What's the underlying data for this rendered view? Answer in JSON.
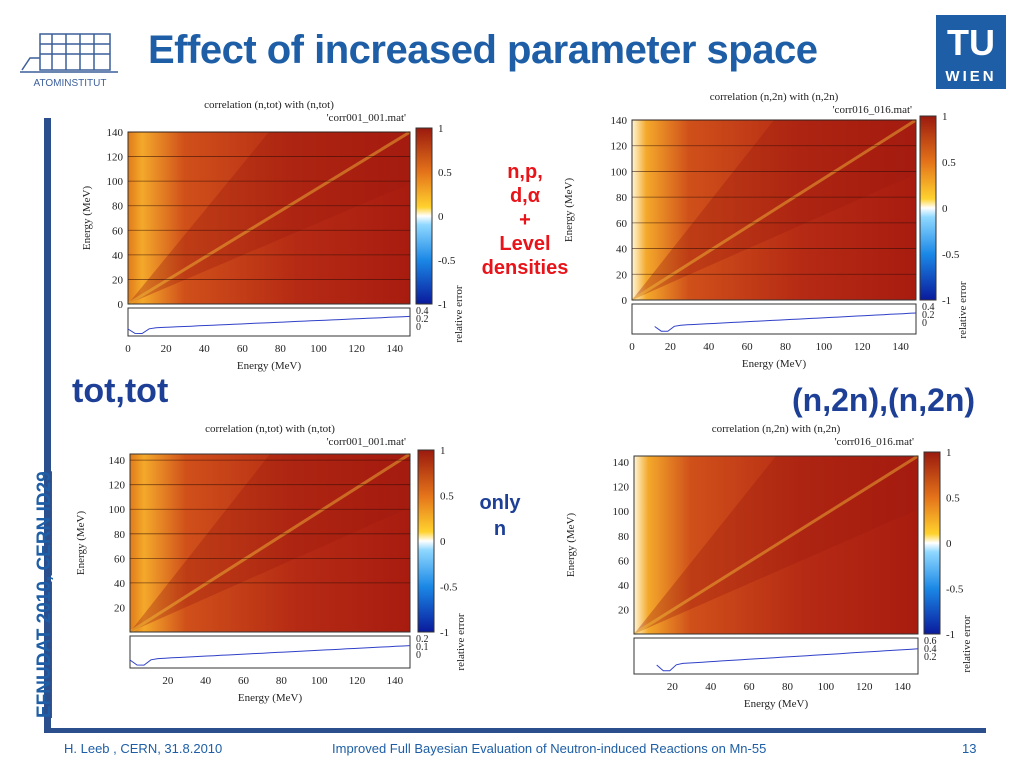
{
  "slide": {
    "title": "Effect of increased parameter space",
    "side_text": "EFNUDAT 2010, CERN    ID29",
    "footer_left": "H. Leeb , CERN, 31.8.2010",
    "footer_center": "Improved Full Bayesian Evaluation of Neutron-induced Reactions on Mn-55",
    "page_number": "13",
    "colors": {
      "title": "#1d5ea6",
      "bar": "#2b4f8c",
      "red_note": "#e8141a",
      "blue_label": "#1d3f96"
    }
  },
  "logos": {
    "left_text": "ATOMINSTITUT",
    "right_line1": "TU",
    "right_line2": "WIEN"
  },
  "labels": {
    "tot_tot": "tot,tot",
    "n2n_n2n": "(n,2n),(n,2n)",
    "note_params": [
      "n,p,",
      "d,α",
      "+",
      "Level",
      "densities"
    ],
    "note_only": [
      "only",
      "n"
    ]
  },
  "plots": [
    {
      "id": "tl",
      "title": "correlation (n,tot) with (n,tot)",
      "file": "'corr001_001.mat'",
      "ylabel": "Energy (MeV)",
      "xlabel": "Energy (MeV)",
      "yticks": [
        "0",
        "20",
        "40",
        "60",
        "80",
        "100",
        "120",
        "140"
      ],
      "xticks": [
        "0",
        "20",
        "40",
        "60",
        "80",
        "100",
        "120",
        "140"
      ],
      "cbar_ticks": [
        "1",
        "0.5",
        "0",
        "-0.5",
        "-1"
      ],
      "rel_ticks": [
        "0.4",
        "0.2",
        "0"
      ],
      "rel_label": "relative error",
      "x_start": 0
    },
    {
      "id": "tr",
      "title": "correlation (n,2n) with (n,2n)",
      "file": "'corr016_016.mat'",
      "ylabel": "Energy (MeV)",
      "xlabel": "Energy (MeV)",
      "yticks": [
        "0",
        "20",
        "40",
        "60",
        "80",
        "100",
        "120",
        "140"
      ],
      "xticks": [
        "0",
        "20",
        "40",
        "60",
        "80",
        "100",
        "120",
        "140"
      ],
      "cbar_ticks": [
        "1",
        "0.5",
        "0",
        "-0.5",
        "-1"
      ],
      "rel_ticks": [
        "0.4",
        "0.2",
        "0"
      ],
      "rel_label": "relative error",
      "x_start": 10
    },
    {
      "id": "bl",
      "title": "correlation (n,tot) with (n,tot)",
      "file": "'corr001_001.mat'",
      "ylabel": "Energy (MeV)",
      "xlabel": "Energy (MeV)",
      "yticks": [
        "20",
        "40",
        "60",
        "80",
        "100",
        "120",
        "140"
      ],
      "xticks": [
        "20",
        "40",
        "60",
        "80",
        "100",
        "120",
        "140"
      ],
      "cbar_ticks": [
        "1",
        "0.5",
        "0",
        "-0.5",
        "-1"
      ],
      "rel_ticks": [
        "0.2",
        "0.1",
        "0"
      ],
      "rel_label": "relative error",
      "x_start": 0
    },
    {
      "id": "br",
      "title": "correlation (n,2n) with (n,2n)",
      "file": "'corr016_016.mat'",
      "ylabel": "Energy (MeV)",
      "xlabel": "Energy (MeV)",
      "yticks": [
        "20",
        "40",
        "60",
        "80",
        "100",
        "120",
        "140"
      ],
      "xticks": [
        "20",
        "40",
        "60",
        "80",
        "100",
        "120",
        "140"
      ],
      "cbar_ticks": [
        "1",
        "0.5",
        "0",
        "-0.5",
        "-1"
      ],
      "rel_ticks": [
        "0.6",
        "0.4",
        "0.2"
      ],
      "rel_label": "relative error",
      "x_start": 10
    }
  ]
}
